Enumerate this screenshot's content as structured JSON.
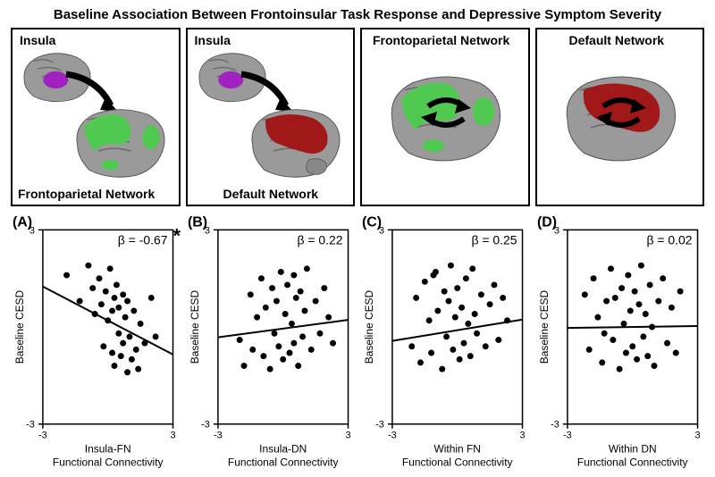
{
  "title": "Baseline Association Between Frontoinsular Task Response and Depressive Symptom Severity",
  "title_fontsize": 15,
  "panel_label_fontsize": 14,
  "letter_fontsize": 16,
  "axis_label_fontsize": 12,
  "tick_fontsize": 11,
  "beta_fontsize": 14,
  "colors": {
    "background": "#ffffff",
    "border": "#000000",
    "text": "#000000",
    "insula": "#a020c0",
    "frontoparietal": "#4fc94f",
    "default_net": "#a01818",
    "brain_gray": "#9a9a9a",
    "brain_gray_dark": "#6a6a6a",
    "point": "#000000",
    "line": "#000000"
  },
  "brain_panels": [
    {
      "top_label": "Insula",
      "bottom_label": "Frontoparietal Network",
      "type": "insula-fn"
    },
    {
      "top_label": "Insula",
      "bottom_label": "Default Network",
      "type": "insula-dn"
    },
    {
      "top_label": "Frontoparietal Network",
      "bottom_label": "",
      "type": "fn"
    },
    {
      "top_label": "Default Network",
      "bottom_label": "",
      "type": "dn"
    }
  ],
  "scatter_panels": [
    {
      "letter": "(A)",
      "beta": "β = -0.67",
      "star": "*",
      "ylabel": "Baseline CESD",
      "xlabel_top": "Insula-FN",
      "xlabel_bottom": "Functional Connectivity",
      "xlim": [
        -3,
        3
      ],
      "ylim": [
        -3,
        3
      ],
      "xticks": [
        -3,
        3
      ],
      "yticks": [
        -3,
        3
      ],
      "slope": -0.35,
      "intercept": 0.2,
      "points": [
        [
          -1.9,
          1.6
        ],
        [
          -1.3,
          0.8
        ],
        [
          -0.9,
          1.9
        ],
        [
          -0.7,
          1.2
        ],
        [
          -0.6,
          0.4
        ],
        [
          -0.4,
          1.5
        ],
        [
          -0.3,
          0.7
        ],
        [
          -0.2,
          -0.6
        ],
        [
          -0.1,
          1.1
        ],
        [
          0.0,
          0.2
        ],
        [
          0.1,
          1.8
        ],
        [
          0.2,
          -0.8
        ],
        [
          0.2,
          0.5
        ],
        [
          0.3,
          0.9
        ],
        [
          0.3,
          -1.2
        ],
        [
          0.4,
          1.3
        ],
        [
          0.5,
          -0.2
        ],
        [
          0.5,
          0.6
        ],
        [
          0.6,
          -0.9
        ],
        [
          0.7,
          1.0
        ],
        [
          0.7,
          -0.5
        ],
        [
          0.8,
          0.3
        ],
        [
          0.9,
          -1.4
        ],
        [
          0.9,
          0.8
        ],
        [
          1.0,
          -0.3
        ],
        [
          1.1,
          -1.0
        ],
        [
          1.2,
          0.5
        ],
        [
          1.3,
          -0.7
        ],
        [
          1.4,
          -1.3
        ],
        [
          1.5,
          0.1
        ],
        [
          1.7,
          -0.5
        ],
        [
          2.0,
          0.9
        ],
        [
          2.2,
          -0.3
        ]
      ]
    },
    {
      "letter": "(B)",
      "beta": "β = 0.22",
      "star": "",
      "ylabel": "Baseline CESD",
      "xlabel_top": "Insula-DN",
      "xlabel_bottom": "Functional Connectivity",
      "xlim": [
        -3,
        3
      ],
      "ylim": [
        -3,
        3
      ],
      "xticks": [
        -3,
        3
      ],
      "yticks": [
        -3,
        3
      ],
      "slope": 0.09,
      "intercept": -0.05,
      "points": [
        [
          -2.0,
          -0.4
        ],
        [
          -1.8,
          -1.2
        ],
        [
          -1.5,
          1.0
        ],
        [
          -1.4,
          -0.7
        ],
        [
          -1.2,
          0.3
        ],
        [
          -1.0,
          1.5
        ],
        [
          -0.9,
          -0.9
        ],
        [
          -0.8,
          0.6
        ],
        [
          -0.6,
          -1.3
        ],
        [
          -0.5,
          1.2
        ],
        [
          -0.4,
          -0.2
        ],
        [
          -0.3,
          0.8
        ],
        [
          -0.2,
          -0.6
        ],
        [
          -0.1,
          1.7
        ],
        [
          0.0,
          -1.0
        ],
        [
          0.1,
          0.4
        ],
        [
          0.2,
          1.3
        ],
        [
          0.3,
          -0.8
        ],
        [
          0.4,
          0.1
        ],
        [
          0.5,
          1.6
        ],
        [
          0.5,
          -0.5
        ],
        [
          0.6,
          0.9
        ],
        [
          0.7,
          -1.2
        ],
        [
          0.8,
          1.1
        ],
        [
          0.9,
          -0.3
        ],
        [
          1.0,
          0.5
        ],
        [
          1.1,
          1.8
        ],
        [
          1.3,
          -0.7
        ],
        [
          1.5,
          0.8
        ],
        [
          1.7,
          -0.2
        ],
        [
          1.9,
          1.2
        ],
        [
          2.1,
          0.3
        ],
        [
          2.3,
          -0.5
        ]
      ]
    },
    {
      "letter": "(C)",
      "beta": "β = 0.25",
      "star": "",
      "ylabel": "Baseline CESD",
      "xlabel_top": "Within FN",
      "xlabel_bottom": "Functional Connectivity",
      "xlim": [
        -3,
        3
      ],
      "ylim": [
        -3,
        3
      ],
      "xticks": [
        -3,
        3
      ],
      "yticks": [
        -3,
        3
      ],
      "slope": 0.11,
      "intercept": -0.1,
      "points": [
        [
          -2.1,
          -0.6
        ],
        [
          -1.9,
          0.9
        ],
        [
          -1.7,
          -1.1
        ],
        [
          -1.5,
          1.4
        ],
        [
          -1.3,
          0.2
        ],
        [
          -1.2,
          -0.8
        ],
        [
          -1.0,
          1.7
        ],
        [
          -0.9,
          0.5
        ],
        [
          -0.7,
          -1.3
        ],
        [
          -0.6,
          1.1
        ],
        [
          -0.5,
          -0.3
        ],
        [
          -0.4,
          0.8
        ],
        [
          -0.3,
          1.9
        ],
        [
          -0.2,
          -0.7
        ],
        [
          -0.1,
          0.3
        ],
        [
          0.0,
          1.2
        ],
        [
          0.1,
          -1.0
        ],
        [
          0.2,
          0.6
        ],
        [
          0.3,
          -0.5
        ],
        [
          0.4,
          1.5
        ],
        [
          0.5,
          0.1
        ],
        [
          0.6,
          -0.9
        ],
        [
          0.7,
          1.8
        ],
        [
          0.8,
          0.4
        ],
        [
          0.9,
          -0.2
        ],
        [
          1.1,
          1.0
        ],
        [
          1.3,
          -0.6
        ],
        [
          1.5,
          0.7
        ],
        [
          1.7,
          1.3
        ],
        [
          1.9,
          -0.4
        ],
        [
          2.1,
          0.9
        ],
        [
          2.3,
          0.2
        ],
        [
          -1.1,
          1.6
        ]
      ]
    },
    {
      "letter": "(D)",
      "beta": "β = 0.02",
      "star": "",
      "ylabel": "Baseline CESD",
      "xlabel_top": "Within DN",
      "xlabel_bottom": "Functional Connectivity",
      "xlim": [
        -3,
        3
      ],
      "ylim": [
        -3,
        3
      ],
      "xticks": [
        -3,
        3
      ],
      "yticks": [
        -3,
        3
      ],
      "slope": 0.01,
      "intercept": 0.0,
      "points": [
        [
          -2.2,
          1.0
        ],
        [
          -2.0,
          -0.7
        ],
        [
          -1.8,
          1.5
        ],
        [
          -1.6,
          0.3
        ],
        [
          -1.4,
          -1.1
        ],
        [
          -1.2,
          0.8
        ],
        [
          -1.0,
          1.8
        ],
        [
          -0.9,
          -0.4
        ],
        [
          -0.8,
          0.9
        ],
        [
          -0.6,
          -1.3
        ],
        [
          -0.5,
          1.2
        ],
        [
          -0.4,
          0.1
        ],
        [
          -0.3,
          -0.8
        ],
        [
          -0.2,
          1.6
        ],
        [
          -0.1,
          0.5
        ],
        [
          0.0,
          -0.6
        ],
        [
          0.1,
          1.1
        ],
        [
          0.2,
          -1.0
        ],
        [
          0.3,
          0.7
        ],
        [
          0.4,
          1.9
        ],
        [
          0.5,
          -0.3
        ],
        [
          0.6,
          0.4
        ],
        [
          0.7,
          -0.9
        ],
        [
          0.8,
          1.3
        ],
        [
          0.9,
          0.0
        ],
        [
          1.0,
          -1.2
        ],
        [
          1.2,
          0.8
        ],
        [
          1.4,
          1.5
        ],
        [
          1.6,
          -0.5
        ],
        [
          1.8,
          0.6
        ],
        [
          2.0,
          -0.8
        ],
        [
          2.2,
          1.1
        ],
        [
          -1.3,
          -0.2
        ]
      ]
    }
  ]
}
